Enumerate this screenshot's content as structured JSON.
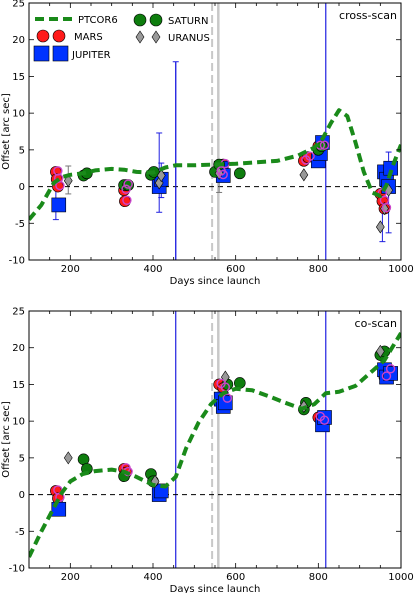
{
  "chart_data": [
    {
      "type": "scatter",
      "title": "cross-scan",
      "xlabel": "Days since launch",
      "ylabel": "Offset [arc sec]",
      "xlim": [
        100,
        1000
      ],
      "ylim": [
        -10,
        25
      ],
      "xticks": [
        200,
        400,
        600,
        800,
        1000
      ],
      "yticks": [
        -10,
        -5,
        0,
        5,
        10,
        15,
        20,
        25
      ],
      "legend": [
        "PTCOR6",
        "MARS",
        "JUPITER",
        "SATURN",
        "URANUS"
      ],
      "vlines_blue": [
        455,
        818
      ],
      "vlines_gray": [
        558,
        543
      ],
      "model_curve": {
        "name": "PTCOR6",
        "x": [
          100,
          130,
          160,
          180,
          200,
          230,
          260,
          300,
          330,
          360,
          400,
          430,
          455,
          500,
          550,
          600,
          650,
          700,
          750,
          790,
          810,
          830,
          850,
          870,
          890,
          910,
          930,
          950,
          965,
          980,
          1000
        ],
        "y": [
          -4.5,
          -2.5,
          0.5,
          1.3,
          1.6,
          1.8,
          2.2,
          2.4,
          2.3,
          2.0,
          1.9,
          2.6,
          2.9,
          2.9,
          3.0,
          3.1,
          3.3,
          3.5,
          4.2,
          5.3,
          6.5,
          8.6,
          10.4,
          9.6,
          6.0,
          2.0,
          -0.8,
          -1.3,
          0.2,
          2.8,
          5.7
        ]
      },
      "series": [
        {
          "name": "MARS",
          "x": [
            165,
            167,
            170,
            330,
            332,
            335,
            560,
            565,
            570,
            765,
            775,
            800,
            810,
            950,
            955,
            960
          ],
          "y": [
            2.0,
            1.0,
            0.0,
            -0.5,
            -2.0,
            0.2,
            2.0,
            1.5,
            3.0,
            3.5,
            4.0,
            5.5,
            5.5,
            -1.0,
            -2.0,
            -3.0
          ]
        },
        {
          "name": "JUPITER",
          "x": [
            172,
            415,
            420,
            565,
            570,
            800,
            805,
            810,
            960,
            965,
            970,
            975
          ],
          "y": [
            -2.5,
            0.0,
            1.0,
            2.5,
            1.5,
            3.5,
            4.5,
            6.0,
            2.0,
            1.0,
            0.0,
            2.5
          ]
        },
        {
          "name": "SATURN",
          "x": [
            232,
            240,
            330,
            340,
            395,
            402,
            550,
            560,
            610,
            800,
            808
          ],
          "y": [
            1.5,
            1.8,
            0.2,
            0.2,
            1.6,
            2.0,
            2.0,
            3.0,
            1.8,
            5.0,
            5.5
          ]
        },
        {
          "name": "URANUS",
          "x": [
            195,
            415,
            420,
            560,
            765,
            950,
            960,
            970
          ],
          "y": [
            0.8,
            0.5,
            1.5,
            1.8,
            1.6,
            -5.5,
            -3.0,
            -0.5
          ]
        }
      ],
      "errorbars": [
        {
          "x": 165,
          "y": 0.0,
          "low": -4.5,
          "high": 1.5
        },
        {
          "x": 195,
          "y": 0.8,
          "low": -1.0,
          "high": 2.8
        },
        {
          "x": 415,
          "y": 2.0,
          "low": -3.5,
          "high": 7.3
        },
        {
          "x": 420,
          "y": 1.0,
          "low": -1.5,
          "high": 3.2
        },
        {
          "x": 455,
          "y": 2.0,
          "low": -10.0,
          "high": 17.0
        },
        {
          "x": 560,
          "y": 1.5,
          "low": -0.8,
          "high": 3.5
        },
        {
          "x": 955,
          "y": -4.0,
          "low": -7.5,
          "high": -1.0
        },
        {
          "x": 970,
          "y": -0.5,
          "low": -6.3,
          "high": 4.7
        }
      ]
    },
    {
      "type": "scatter",
      "title": "co-scan",
      "xlabel": "Days since launch",
      "ylabel": "Offset [arc sec]",
      "xlim": [
        100,
        1000
      ],
      "ylim": [
        -10,
        25
      ],
      "xticks": [
        200,
        400,
        600,
        800,
        1000
      ],
      "yticks": [
        -10,
        -5,
        0,
        5,
        10,
        15,
        20,
        25
      ],
      "vlines_blue": [
        455,
        818
      ],
      "vlines_gray": [
        558,
        543
      ],
      "model_curve": {
        "name": "PTCOR6",
        "x": [
          100,
          130,
          160,
          180,
          200,
          230,
          260,
          300,
          330,
          360,
          400,
          430,
          455,
          480,
          510,
          540,
          570,
          600,
          640,
          680,
          720,
          760,
          790,
          818,
          850,
          890,
          930,
          960,
          1000
        ],
        "y": [
          -8.5,
          -5.0,
          -1.8,
          0.3,
          1.8,
          2.8,
          3.2,
          3.4,
          3.1,
          2.4,
          1.3,
          1.1,
          2.4,
          6.3,
          9.8,
          12.3,
          13.8,
          14.4,
          14.2,
          13.4,
          12.5,
          11.7,
          12.3,
          13.8,
          14.0,
          14.8,
          16.8,
          18.3,
          22.0
        ]
      },
      "series": [
        {
          "name": "MARS",
          "x": [
            165,
            170,
            330,
            335,
            560,
            570,
            575,
            800,
            810,
            960,
            970
          ],
          "y": [
            0.5,
            -0.5,
            3.5,
            3.0,
            15.0,
            14.5,
            13.0,
            10.5,
            10.0,
            16.0,
            17.0
          ]
        },
        {
          "name": "JUPITER",
          "x": [
            172,
            415,
            420,
            565,
            570,
            575,
            810,
            815,
            960,
            965,
            975
          ],
          "y": [
            -2.0,
            0.0,
            0.5,
            13.0,
            12.0,
            12.5,
            9.5,
            10.5,
            17.0,
            16.0,
            16.5
          ]
        },
        {
          "name": "SATURN",
          "x": [
            232,
            240,
            330,
            395,
            400,
            580,
            610,
            765,
            770,
            950,
            960
          ],
          "y": [
            4.8,
            3.5,
            2.5,
            2.8,
            1.8,
            15.0,
            15.2,
            11.6,
            12.5,
            19.0,
            19.5
          ]
        },
        {
          "name": "URANUS",
          "x": [
            195,
            405,
            575,
            765,
            950
          ],
          "y": [
            5.0,
            1.8,
            16.0,
            12.0,
            19.5
          ]
        }
      ]
    }
  ]
}
